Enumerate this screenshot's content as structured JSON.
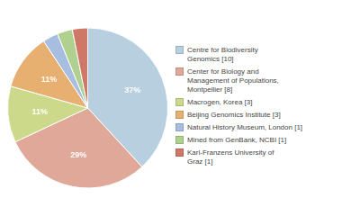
{
  "chart_data": {
    "type": "pie",
    "categories": [
      "Centre for Biodiversity\nGenomics [10]",
      "Center for Biology and\nManagement of Populations,\nMontpellier [8]",
      "Macrogen, Korea [3]",
      "Beijing Genomics Institute [3]",
      "Natural History Museum, London [1]",
      "Mined from GenBank, NCBI [1]",
      "Karl-Franzens University of\nGraz [1]"
    ],
    "values": [
      37,
      29,
      11,
      11,
      3,
      3,
      3
    ],
    "value_labels": [
      "37%",
      "29%",
      "11%",
      "11%",
      null,
      null,
      null
    ],
    "colors": [
      "#b8cfe0",
      "#e0a898",
      "#ccd98a",
      "#e8b070",
      "#a8bee0",
      "#b0d090",
      "#d07868"
    ],
    "data_labels": true,
    "legend": "right"
  }
}
